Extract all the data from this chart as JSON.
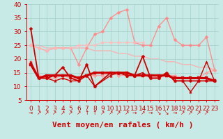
{
  "xlabel": "Vent moyen/en rafales ( km/h )",
  "xlim": [
    -0.5,
    23.5
  ],
  "ylim": [
    5,
    40
  ],
  "yticks": [
    5,
    10,
    15,
    20,
    25,
    30,
    35,
    40
  ],
  "xticks": [
    0,
    1,
    2,
    3,
    4,
    5,
    6,
    7,
    8,
    9,
    10,
    11,
    12,
    13,
    14,
    15,
    16,
    17,
    18,
    19,
    20,
    21,
    22,
    23
  ],
  "bg_color": "#c8eae6",
  "grid_color": "#a8d4ce",
  "lines": [
    {
      "x": [
        0,
        1,
        2,
        3,
        4,
        5,
        6,
        7,
        8,
        10,
        11,
        12,
        13,
        14,
        15,
        16,
        17,
        18,
        19,
        20,
        21,
        22,
        23
      ],
      "y": [
        31,
        13,
        13,
        14,
        17,
        13,
        12,
        18,
        10,
        15,
        15,
        14,
        14,
        21,
        13,
        13,
        15,
        12,
        12,
        12,
        12,
        12,
        12
      ],
      "color": "#cc0000",
      "lw": 1.3,
      "marker": "D",
      "ms": 2.5,
      "alpha": 1.0,
      "zorder": 4
    },
    {
      "x": [
        0,
        1,
        2,
        3,
        4,
        5,
        6,
        7,
        8,
        9,
        10,
        11,
        12,
        13,
        14,
        15,
        16,
        17,
        18,
        19,
        20,
        21,
        22,
        23
      ],
      "y": [
        18,
        13,
        14,
        14,
        14,
        14,
        13,
        14,
        15,
        15,
        15,
        15,
        15,
        14,
        14,
        14,
        14,
        14,
        13,
        13,
        13,
        13,
        13,
        12
      ],
      "color": "#cc0000",
      "lw": 2.2,
      "marker": "s",
      "ms": 2.5,
      "alpha": 1.0,
      "zorder": 5
    },
    {
      "x": [
        0,
        1,
        2,
        3,
        4,
        5,
        6,
        7,
        8,
        10,
        11,
        12,
        13,
        14,
        15,
        16,
        17,
        18,
        19,
        20,
        21,
        22,
        23
      ],
      "y": [
        19,
        13,
        13,
        12,
        13,
        12,
        12,
        14,
        10,
        14,
        15,
        14,
        14,
        15,
        13,
        13,
        15,
        12,
        12,
        8,
        12,
        19,
        12
      ],
      "color": "#cc0000",
      "lw": 1.0,
      "marker": "^",
      "ms": 2.5,
      "alpha": 1.0,
      "zorder": 4
    },
    {
      "x": [
        0,
        1,
        2,
        3,
        4,
        5,
        6,
        7,
        8,
        9,
        10,
        11,
        12,
        13,
        14,
        15,
        16,
        17,
        18,
        19,
        20,
        21,
        22,
        23
      ],
      "y": [
        25,
        24,
        23,
        24,
        24,
        24,
        18,
        24,
        29,
        30,
        35,
        37,
        38,
        26,
        25,
        25,
        32,
        35,
        27,
        25,
        25,
        25,
        28,
        16
      ],
      "color": "#ff8888",
      "lw": 1.0,
      "marker": "D",
      "ms": 2.5,
      "alpha": 0.9,
      "zorder": 2
    },
    {
      "x": [
        0,
        1,
        2,
        3,
        4,
        5,
        6,
        7,
        8,
        9,
        10,
        11,
        12,
        13,
        14,
        15,
        16,
        17,
        18,
        19,
        20,
        21,
        22,
        23
      ],
      "y": [
        25,
        25,
        24,
        24,
        24,
        24,
        24,
        24,
        23,
        23,
        23,
        22,
        22,
        21,
        21,
        20,
        20,
        19,
        19,
        18,
        18,
        17,
        17,
        16
      ],
      "color": "#ffaaaa",
      "lw": 1.0,
      "marker": null,
      "ms": 0,
      "alpha": 0.85,
      "zorder": 1
    },
    {
      "x": [
        0,
        1,
        2,
        3,
        4,
        5,
        6,
        7,
        8,
        9,
        10,
        11,
        12,
        13,
        14,
        15,
        16,
        17,
        18,
        19,
        20,
        21,
        22,
        23
      ],
      "y": [
        19,
        14,
        13,
        13,
        14,
        13,
        13,
        14,
        14,
        14,
        15,
        14,
        14,
        14,
        14,
        14,
        13,
        14,
        14,
        13,
        13,
        13,
        15,
        16
      ],
      "color": "#ff9999",
      "lw": 1.0,
      "marker": "D",
      "ms": 2.5,
      "alpha": 0.85,
      "zorder": 3
    },
    {
      "x": [
        0,
        1,
        2,
        3,
        4,
        5,
        6,
        7,
        8,
        9,
        10,
        11,
        12,
        13,
        14
      ],
      "y": [
        25,
        24,
        23,
        24,
        24,
        24,
        25,
        25,
        25,
        26,
        26,
        26,
        26,
        26,
        26
      ],
      "color": "#ffbbbb",
      "lw": 1.0,
      "marker": "D",
      "ms": 2.5,
      "alpha": 0.8,
      "zorder": 2
    }
  ],
  "wind_arrows": [
    "→",
    "↗",
    "↗",
    "↗",
    "↗",
    "↗",
    "↗",
    "↑",
    "↑",
    "↗",
    "↗",
    "↗",
    "↗",
    "→",
    "↗",
    "→",
    "↘",
    "↘",
    "→",
    "↗",
    "↗",
    "↗",
    "↗"
  ],
  "xlabel_color": "#cc0000",
  "xlabel_fontsize": 8,
  "tick_color": "#cc0000",
  "tick_fontsize": 6.5
}
